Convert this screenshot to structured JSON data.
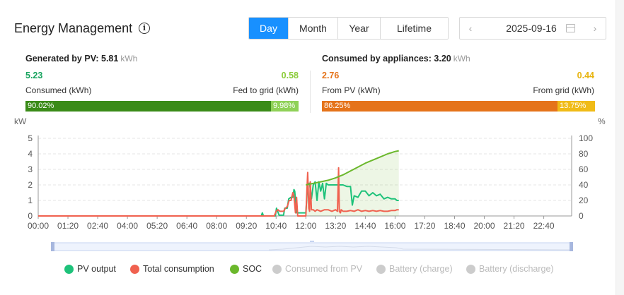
{
  "header": {
    "title": "Energy Management",
    "tabs": [
      {
        "label": "Day",
        "active": true
      },
      {
        "label": "Month",
        "active": false
      },
      {
        "label": "Year",
        "active": false
      },
      {
        "label": "Lifetime",
        "active": false
      }
    ],
    "date": "2025-09-16"
  },
  "generated": {
    "label": "Generated by PV:",
    "value": "5.81",
    "unit": "kWh",
    "consumed_value": "5.23",
    "consumed_label": "Consumed (kWh)",
    "fed_value": "0.58",
    "fed_label": "Fed to grid (kWh)",
    "consumed_pct_label": "90.02%",
    "fed_pct_label": "9.98%",
    "consumed_fraction": 0.9002,
    "colors": {
      "consumed": "#3a8b18",
      "fed": "#8fd157",
      "consumed_text": "#17a35e",
      "fed_text": "#8ccc3a"
    }
  },
  "consumed": {
    "label": "Consumed by appliances:",
    "value": "3.20",
    "unit": "kWh",
    "pv_value": "2.76",
    "pv_label": "From PV (kWh)",
    "grid_value": "0.44",
    "grid_label": "From grid (kWh)",
    "pv_pct_label": "86.25%",
    "grid_pct_label": "13.75%",
    "pv_fraction": 0.8625,
    "colors": {
      "pv": "#e5731a",
      "grid": "#f0bb17",
      "pv_text": "#e5731a",
      "grid_text": "#e8b40f"
    }
  },
  "chart_data": {
    "type": "line",
    "y_unit_left": "kW",
    "y_unit_right": "%",
    "ylim_left": [
      0,
      5
    ],
    "ylim_right": [
      0,
      100
    ],
    "yticks_left": [
      "0",
      "1",
      "2",
      "3",
      "4",
      "5"
    ],
    "yticks_right": [
      "0",
      "20",
      "40",
      "60",
      "80",
      "100"
    ],
    "xlim_minutes": [
      0,
      1435
    ],
    "xticks": [
      "00:00",
      "01:20",
      "02:40",
      "04:00",
      "05:20",
      "06:40",
      "08:00",
      "09:20",
      "10:40",
      "12:00",
      "13:20",
      "14:40",
      "16:00",
      "17:20",
      "18:40",
      "20:00",
      "21:20",
      "22:40"
    ],
    "grid": true,
    "legend_position": "bottom",
    "series": [
      {
        "name": "PV output",
        "color": "#1ec27a",
        "axis": "left",
        "x": [
          "00:00",
          "10:00",
          "10:03",
          "10:06",
          "10:20",
          "10:30",
          "10:38",
          "10:41",
          "10:48",
          "10:55",
          "11:00",
          "11:03",
          "11:10",
          "11:14",
          "11:20",
          "11:25",
          "11:28",
          "11:30",
          "11:35",
          "11:40",
          "11:50",
          "12:00",
          "12:05",
          "12:10",
          "12:15",
          "12:20",
          "12:25",
          "12:30",
          "12:35",
          "12:40",
          "12:45",
          "12:50",
          "12:55",
          "13:00",
          "13:10",
          "13:20",
          "13:30",
          "13:40",
          "13:50",
          "14:00",
          "14:05",
          "14:10",
          "14:20",
          "14:30",
          "14:40",
          "14:50",
          "15:00",
          "15:10",
          "15:20",
          "15:30",
          "15:40",
          "15:50",
          "16:00",
          "16:05",
          "16:10"
        ],
        "y": [
          0,
          0,
          0.2,
          0,
          0,
          0,
          0,
          0.5,
          0.05,
          0.05,
          0.05,
          0.5,
          0.5,
          1.1,
          1.2,
          1.2,
          1.7,
          1.6,
          0.2,
          0.2,
          0.2,
          0.2,
          2.1,
          2.1,
          1.1,
          2.0,
          2.2,
          1.0,
          2.2,
          1.6,
          2.1,
          1.1,
          2.1,
          2.0,
          2.0,
          2.0,
          2.0,
          2.0,
          1.9,
          1.9,
          0.7,
          1.3,
          1.2,
          1.6,
          1.6,
          1.3,
          1.5,
          1.3,
          1.4,
          1.1,
          1.2,
          1.1,
          1.1,
          1.0,
          1.0
        ]
      },
      {
        "name": "Total consumption",
        "color": "#f0614f",
        "axis": "left",
        "x": [
          "00:00",
          "10:00",
          "10:10",
          "10:25",
          "10:30",
          "10:35",
          "10:40",
          "10:45",
          "10:50",
          "11:00",
          "11:05",
          "11:10",
          "11:15",
          "11:20",
          "11:25",
          "11:28",
          "11:32",
          "11:35",
          "11:38",
          "11:50",
          "12:00",
          "12:05",
          "12:08",
          "12:10",
          "12:12",
          "12:15",
          "12:20",
          "12:25",
          "12:30",
          "12:40",
          "12:50",
          "13:00",
          "13:10",
          "13:20",
          "13:25",
          "13:28",
          "13:30",
          "13:33",
          "13:35",
          "13:40",
          "13:50",
          "14:00",
          "14:10",
          "14:20",
          "14:30",
          "14:40",
          "14:50",
          "15:00",
          "15:10",
          "15:20",
          "15:30",
          "15:40",
          "15:50",
          "16:00",
          "16:05",
          "16:10"
        ],
        "y": [
          0,
          0,
          0,
          0,
          0,
          0,
          0.3,
          0.4,
          0.3,
          0.3,
          0.5,
          0.6,
          1.0,
          1.0,
          1.5,
          1.3,
          0.2,
          1.2,
          0,
          0,
          0,
          2.8,
          0.5,
          0.3,
          2.2,
          0.4,
          0.4,
          0.3,
          0.4,
          0.3,
          0.4,
          0.4,
          0.3,
          0.4,
          0.3,
          3.1,
          0.3,
          0.2,
          0.4,
          0.3,
          0.3,
          0.35,
          0.3,
          0.4,
          0.3,
          0.35,
          0.3,
          0.35,
          0.3,
          0.35,
          0.3,
          0.3,
          0.35,
          0.35,
          0.4,
          0.4
        ]
      },
      {
        "name": "SOC",
        "color": "#6bb82c",
        "axis": "right",
        "x": [
          "12:00",
          "12:10",
          "12:20",
          "12:40",
          "13:00",
          "13:20",
          "13:40",
          "14:00",
          "14:20",
          "14:40",
          "15:00",
          "15:20",
          "15:40",
          "16:00",
          "16:10"
        ],
        "y": [
          40,
          41,
          42,
          44,
          46,
          49,
          53,
          58,
          63,
          68,
          72,
          76,
          80,
          83,
          84
        ]
      },
      {
        "name": "Consumed from PV",
        "color": "#cccccc",
        "hidden": true
      },
      {
        "name": "Battery (charge)",
        "color": "#cccccc",
        "hidden": true
      },
      {
        "name": "Battery (discharge)",
        "color": "#cccccc",
        "hidden": true
      }
    ]
  }
}
